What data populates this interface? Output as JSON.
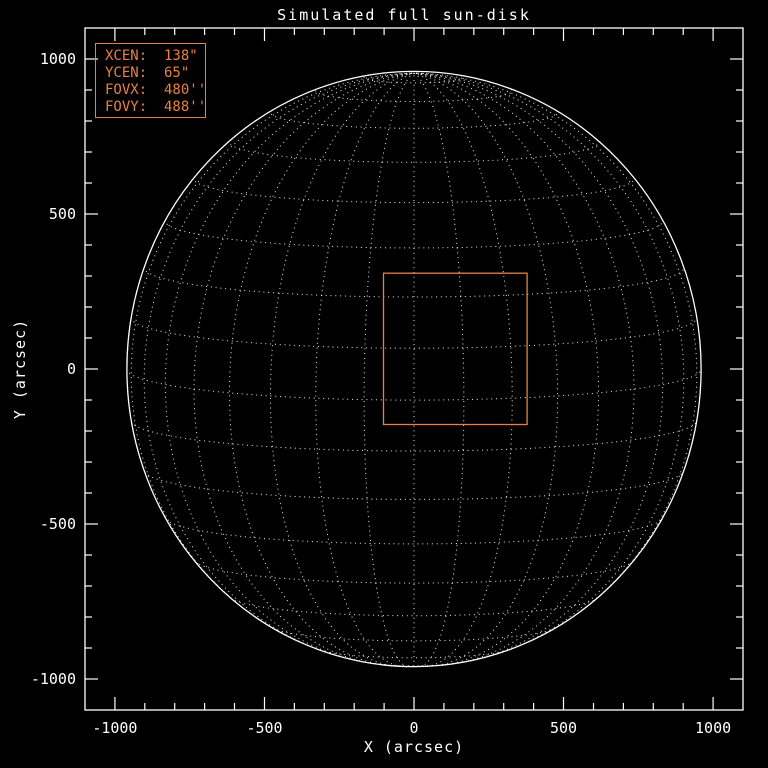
{
  "window": {
    "background": "#000000"
  },
  "legend": {
    "border_color": "#E8803F",
    "text_color": "#E8803F",
    "items": [
      {
        "text": "XCEN:  138\""
      },
      {
        "text": "YCEN:  65\""
      },
      {
        "text": "FOVX:  480''"
      },
      {
        "text": "FOVY:  488''"
      }
    ]
  },
  "chart_data": {
    "type": "line",
    "subtype": "wireframe-sun-disk",
    "title": "Simulated full sun-disk",
    "xlabel": "X (arcsec)",
    "ylabel": "Y (arcsec)",
    "xlim": [
      -1100,
      1100
    ],
    "ylim": [
      -1100,
      1100
    ],
    "x_ticks": [
      {
        "v": -1000,
        "label": "-1000"
      },
      {
        "v": -500,
        "label": "-500"
      },
      {
        "v": 0,
        "label": "0"
      },
      {
        "v": 500,
        "label": "500"
      },
      {
        "v": 1000,
        "label": "1000"
      }
    ],
    "y_ticks": [
      {
        "v": -1000,
        "label": "-1000"
      },
      {
        "v": -500,
        "label": "-500"
      },
      {
        "v": 0,
        "label": "0"
      },
      {
        "v": 500,
        "label": "500"
      },
      {
        "v": 1000,
        "label": "1000"
      }
    ],
    "minor_tick_step": 100,
    "grid_on": true,
    "sun": {
      "radius_arcsec": 960,
      "center_arcsec": [
        0,
        0
      ],
      "lat_step_deg": 10,
      "lon_step_deg": 10,
      "lat_range_deg": [
        -80,
        80
      ],
      "lon_range_deg": [
        -80,
        80
      ],
      "b0_tilt_deg": 6,
      "grid_style": "dotted",
      "limb_style": "solid"
    },
    "fov_box": {
      "xcen": 138,
      "ycen": 65,
      "fovx": 480,
      "fovy": 488
    },
    "colors": {
      "background": "#000000",
      "foreground": "#FFFFFF",
      "accent": "#E8803F"
    }
  }
}
